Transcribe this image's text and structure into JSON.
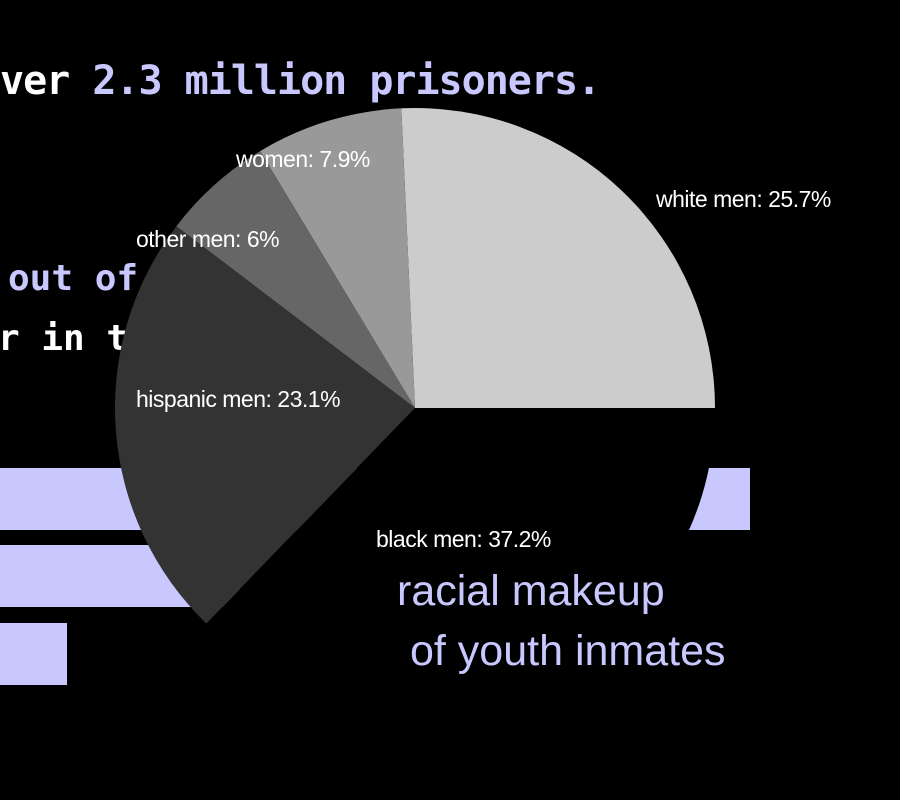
{
  "headline": {
    "prefix": "ver ",
    "highlight": "2.3 million prisoners."
  },
  "background_text": {
    "line1": "out of 1",
    "line2": "r in the"
  },
  "background_bars": [
    {
      "fraction": 1.0
    },
    {
      "fraction": 0.32
    },
    {
      "fraction": 0.09
    }
  ],
  "caption": {
    "line1": "racial makeup",
    "line2": "of youth inmates"
  },
  "colors": {
    "background": "#000000",
    "accent": "#c8c8ff",
    "label_text": "#ffffff"
  },
  "chart_data": {
    "type": "pie",
    "title": "racial makeup of youth inmates",
    "unit": "%",
    "start_angle_deg": 0,
    "direction": "counterclockwise",
    "slices": [
      {
        "label": "white men",
        "value": 25.7,
        "display": "white men: 25.7%",
        "color": "#cccccc"
      },
      {
        "label": "women",
        "value": 7.9,
        "display": "women: 7.9%",
        "color": "#999999"
      },
      {
        "label": "other men",
        "value": 6,
        "display": "other men: 6%",
        "color": "#666666"
      },
      {
        "label": "hispanic men",
        "value": 23.1,
        "display": "hispanic men: 23.1%",
        "color": "#333333"
      },
      {
        "label": "black men",
        "value": 37.2,
        "display": "black men: 37.2%",
        "color": "#000000"
      }
    ]
  }
}
